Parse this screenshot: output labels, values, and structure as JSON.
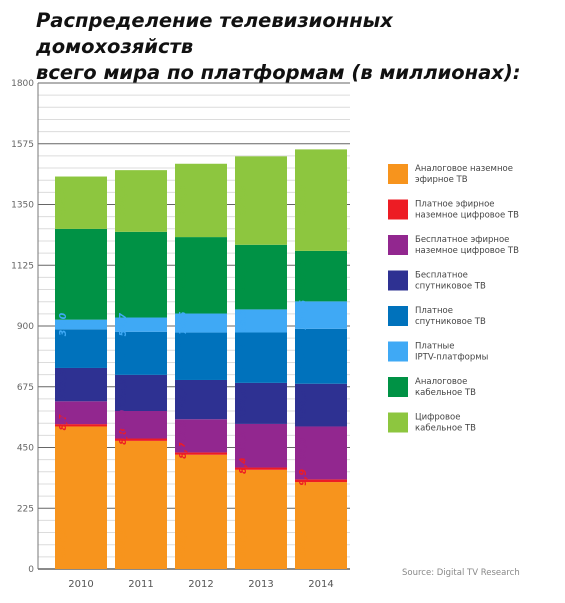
{
  "title_lines": [
    "Распределение телевизионных домохозяйств",
    "всего мира по платформам (в миллионах):"
  ],
  "source": "Source: Digital TV Research",
  "chart_data": {
    "type": "bar",
    "stacked": true,
    "categories": [
      "2010",
      "2011",
      "2012",
      "2013",
      "2014"
    ],
    "ylim": [
      0,
      1800
    ],
    "yticks": [
      0,
      225,
      450,
      675,
      900,
      1125,
      1350,
      1575,
      1800
    ],
    "grid": true,
    "legend_position": "right",
    "series": [
      {
        "name": "Аналоговое наземное эфирное ТВ",
        "color": "#f7941d",
        "values": [
          527.9,
          474.5,
          423.1,
          367.4,
          322.0
        ],
        "labels": [
          "527,9",
          "474,5",
          "423,1",
          "367,4",
          "322,0"
        ]
      },
      {
        "name": "Платное эфирное наземное цифровое ТВ",
        "color": "#ed1c24",
        "values": [
          8.7,
          8.8,
          8.7,
          8.4,
          9.9
        ],
        "labels": [
          "8,7",
          "8,8",
          "8,7",
          "8,4",
          "9,9"
        ]
      },
      {
        "name": "Бесплатное эфирное наземное цифровое ТВ",
        "color": "#92278f",
        "values": [
          84.5,
          101.9,
          122.9,
          161.5,
          196.0
        ],
        "labels": [
          "84,5",
          "101,9",
          "122,9",
          "161,5",
          "196,0"
        ]
      },
      {
        "name": "Бесплатное спутниковое ТВ",
        "color": "#2e3192",
        "values": [
          123.5,
          133.8,
          145.4,
          152.0,
          158.3
        ],
        "labels": [
          "123,5",
          "133,8",
          "145,4",
          "152,0",
          "158,3"
        ]
      },
      {
        "name": "Платное спутниковое ТВ",
        "color": "#0072bc",
        "values": [
          143.0,
          159.7,
          175.6,
          186.7,
          203.4
        ],
        "labels": [
          "143,0",
          "159,7",
          "175,6",
          "186,7",
          "203,4"
        ]
      },
      {
        "name": "Платные IPTV-платформы",
        "color": "#3fa9f5",
        "values": [
          36.0,
          52.7,
          70.5,
          85.5,
          101.6
        ],
        "labels": [
          "36,0",
          "52,7",
          "70,5",
          "85,5",
          "101,6"
        ]
      },
      {
        "name": "Аналоговое кабельное ТВ",
        "color": "#009245",
        "values": [
          336.0,
          317.4,
          283.1,
          239.3,
          187.0
        ],
        "labels": [
          "336,0",
          "317,4",
          "283,1",
          "239,3",
          "187,0"
        ]
      },
      {
        "name": "Цифровое кабельное ТВ",
        "color": "#8dc63f",
        "values": [
          194.0,
          228.4,
          271.6,
          327.6,
          375.9
        ],
        "labels": [
          "194,0",
          "228,4",
          "271,6",
          "327,6",
          "375,9"
        ]
      }
    ],
    "legend_lines": [
      [
        "Аналоговое наземное",
        "эфирное ТВ"
      ],
      [
        "Платное эфирное",
        "наземное цифровое ТВ"
      ],
      [
        "Бесплатное эфирное",
        "наземное цифровое ТВ"
      ],
      [
        "Бесплатное",
        "спутниковое ТВ"
      ],
      [
        "Платное",
        "спутниковое ТВ"
      ],
      [
        "Платные",
        "IPTV-платформы"
      ],
      [
        "Аналоговое",
        "кабельное ТВ"
      ],
      [
        "Цифровое",
        "кабельное ТВ"
      ]
    ]
  }
}
